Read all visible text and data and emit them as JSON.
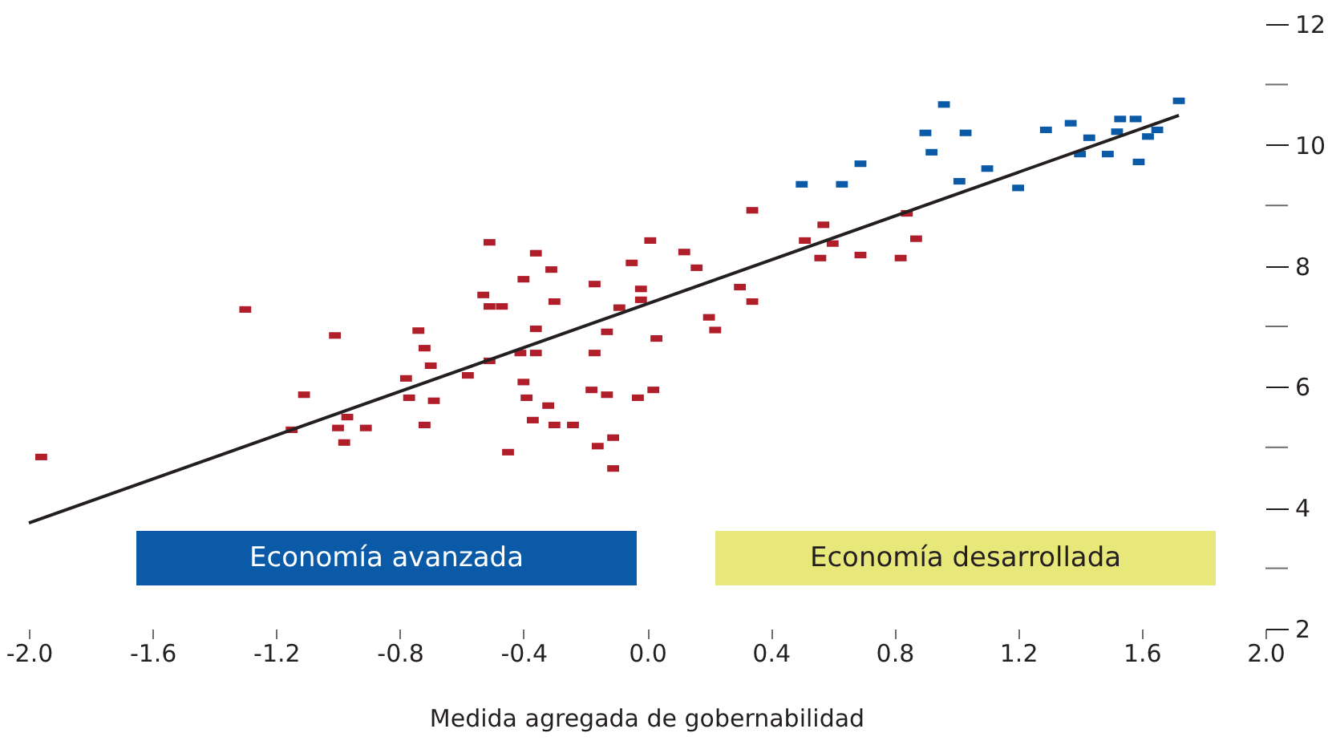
{
  "chart_data": {
    "type": "scatter",
    "xlabel": "Medida agregada de gobernabilidad",
    "xlim": [
      -2.0,
      2.0
    ],
    "xticks": [
      {
        "value": -2.0,
        "label": "-2.0"
      },
      {
        "value": -1.6,
        "label": "-1.6"
      },
      {
        "value": -1.2,
        "label": "-1.2"
      },
      {
        "value": -0.8,
        "label": "-0.8"
      },
      {
        "value": -0.4,
        "label": "-0.4"
      },
      {
        "value": 0.0,
        "label": "0.0"
      },
      {
        "value": 0.4,
        "label": "0.4"
      },
      {
        "value": 0.8,
        "label": "0.8"
      },
      {
        "value": 1.2,
        "label": "1.2"
      },
      {
        "value": 1.6,
        "label": "1.6"
      },
      {
        "value": 2.0,
        "label": "2.0"
      }
    ],
    "ylim": [
      2,
      12
    ],
    "yticks": [
      2,
      {
        "value": 3,
        "label": null
      },
      4,
      {
        "value": 5,
        "label": null
      },
      6,
      {
        "value": 7,
        "label": null
      },
      8,
      {
        "value": 9,
        "label": null
      },
      10,
      {
        "value": 11,
        "label": null
      },
      12
    ],
    "annotations": [
      "Economía desarrollada"
    ],
    "grid": false,
    "legend": "bottom",
    "marker": "square",
    "series": [
      {
        "name": "Economía avanzada",
        "color": "#0b5aa8",
        "x": [
          0.5,
          0.63,
          0.69,
          0.96,
          0.9,
          1.03,
          0.92,
          1.01,
          1.1,
          1.2,
          1.29,
          1.37,
          1.43,
          1.4,
          1.49,
          1.53,
          1.58,
          1.52,
          1.59,
          1.62,
          1.65,
          1.72
        ],
        "values": [
          9.35,
          9.35,
          9.69,
          10.67,
          10.2,
          10.2,
          9.88,
          9.4,
          9.61,
          9.29,
          10.25,
          10.36,
          10.12,
          9.85,
          9.85,
          10.43,
          10.43,
          10.22,
          9.72,
          10.14,
          10.25,
          10.73
        ]
      },
      {
        "color": "#b01f29",
        "x": [
          -1.96,
          -1.3,
          -1.01,
          -1.11,
          -1.15,
          -0.97,
          -1.0,
          -0.91,
          -0.98,
          -0.74,
          -0.72,
          -0.7,
          -0.78,
          -0.77,
          -0.69,
          -0.72,
          -0.58,
          -0.51,
          -0.41,
          -0.36,
          -0.4,
          -0.39,
          -0.32,
          -0.37,
          -0.3,
          -0.24,
          -0.45,
          -0.51,
          -0.36,
          -0.31,
          -0.4,
          -0.53,
          -0.51,
          -0.47,
          -0.3,
          -0.36,
          -0.17,
          0.01,
          -0.05,
          -0.02,
          -0.02,
          -0.09,
          -0.13,
          -0.17,
          -0.18,
          -0.13,
          -0.03,
          0.02,
          -0.16,
          -0.11,
          -0.11,
          0.12,
          0.16,
          0.3,
          0.34,
          0.2,
          0.22,
          0.03,
          0.34,
          0.57,
          0.51,
          0.6,
          0.56,
          0.69,
          0.84,
          0.87,
          0.82
        ],
        "values": [
          4.84,
          7.28,
          6.85,
          5.87,
          5.29,
          5.5,
          5.32,
          5.32,
          5.08,
          6.93,
          6.64,
          6.35,
          6.14,
          5.82,
          5.77,
          5.37,
          6.19,
          6.43,
          6.56,
          6.56,
          6.08,
          5.82,
          5.69,
          5.45,
          5.37,
          5.37,
          4.92,
          8.39,
          8.21,
          7.94,
          7.78,
          7.52,
          7.33,
          7.33,
          7.41,
          6.96,
          7.7,
          8.42,
          8.05,
          7.62,
          7.44,
          7.31,
          6.91,
          6.56,
          5.95,
          5.87,
          5.82,
          5.95,
          5.02,
          5.16,
          4.65,
          8.23,
          7.97,
          7.65,
          7.41,
          7.15,
          6.94,
          6.8,
          8.92,
          8.68,
          8.42,
          8.37,
          8.13,
          8.18,
          8.87,
          8.45,
          8.13
        ]
      },
      {
        "type": "line",
        "color": "#231f20",
        "marker": "none",
        "line_style": "solid",
        "x": [
          -2.0,
          1.72
        ],
        "values": [
          3.75,
          10.49
        ]
      }
    ]
  }
}
